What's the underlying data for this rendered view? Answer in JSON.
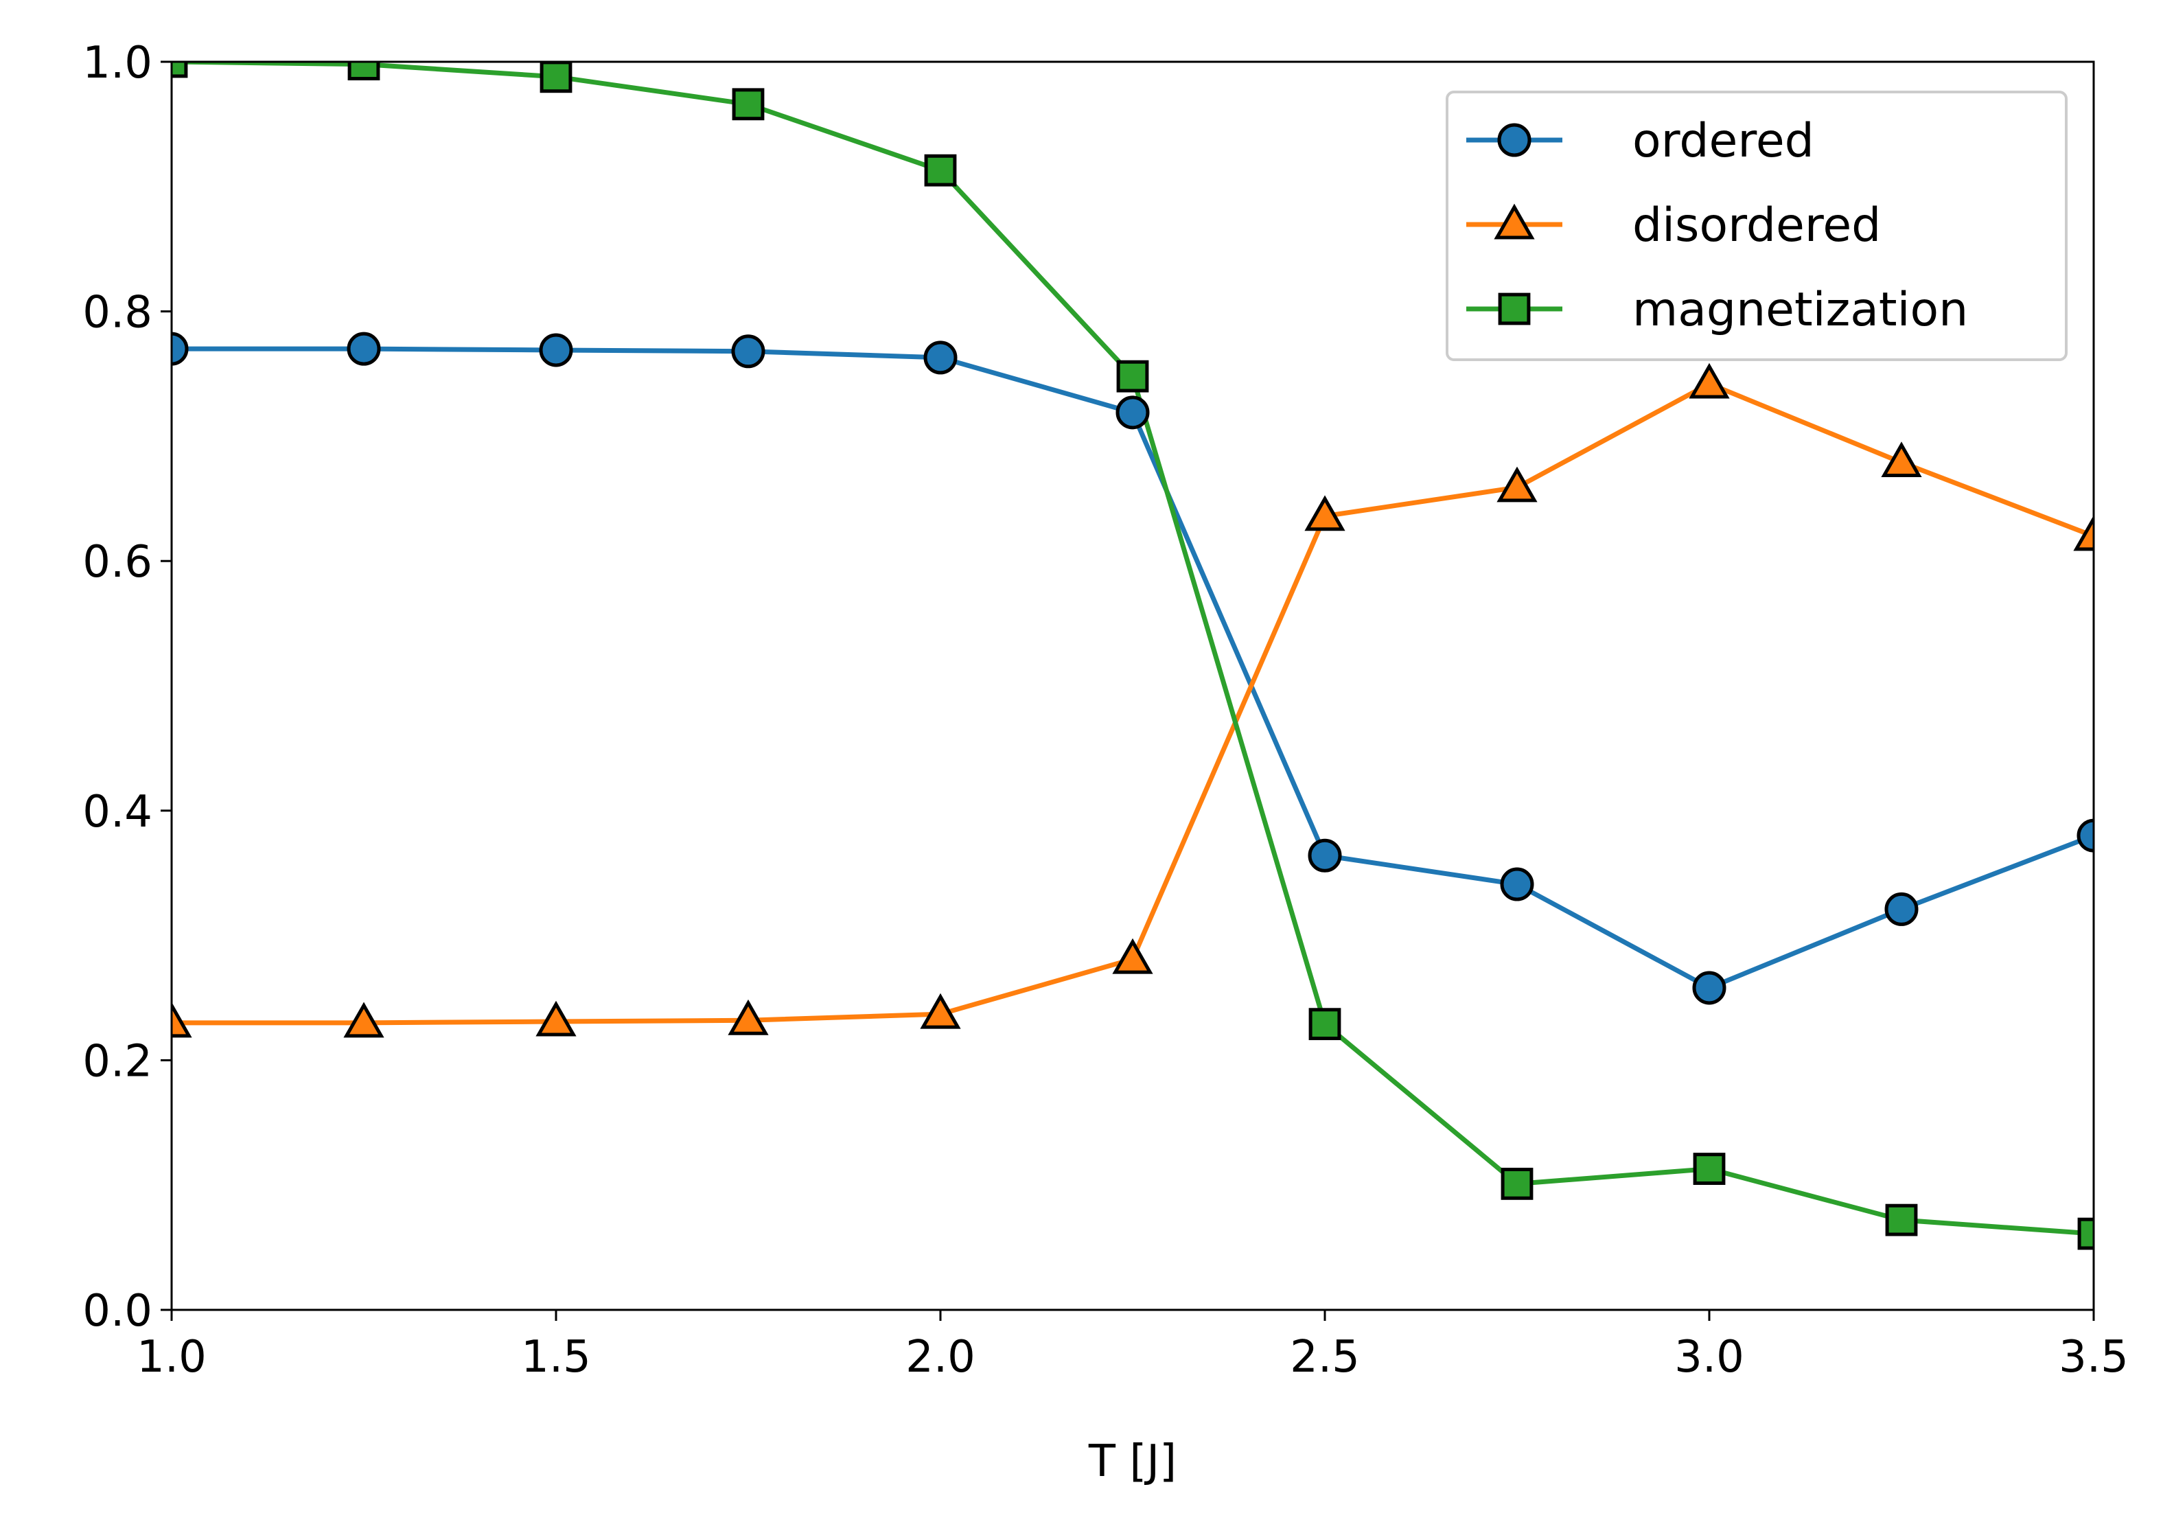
{
  "chart_data": {
    "type": "line",
    "title": "",
    "xlabel": "T [J]",
    "ylabel": "",
    "xlim": [
      1.0,
      3.5
    ],
    "ylim": [
      0.0,
      1.0
    ],
    "xticks": [
      "1.0",
      "1.5",
      "2.0",
      "2.5",
      "3.0",
      "3.5"
    ],
    "yticks": [
      "0.0",
      "0.2",
      "0.4",
      "0.6",
      "0.8",
      "1.0"
    ],
    "grid": false,
    "legend_position": "top-right",
    "x": [
      1.0,
      1.25,
      1.5,
      1.75,
      2.0,
      2.25,
      2.5,
      2.75,
      3.0,
      3.25,
      3.5
    ],
    "series": [
      {
        "name": "ordered",
        "marker": "circle",
        "color": "#1f77b4",
        "values": [
          0.77,
          0.77,
          0.769,
          0.768,
          0.763,
          0.719,
          0.364,
          0.341,
          0.258,
          0.321,
          0.38
        ]
      },
      {
        "name": "disordered",
        "marker": "triangle",
        "color": "#ff7f0e",
        "values": [
          0.23,
          0.23,
          0.231,
          0.232,
          0.237,
          0.281,
          0.636,
          0.659,
          0.742,
          0.679,
          0.62
        ]
      },
      {
        "name": "magnetization",
        "marker": "square",
        "color": "#2ca02c",
        "values": [
          1.0,
          0.998,
          0.988,
          0.966,
          0.913,
          0.748,
          0.229,
          0.101,
          0.113,
          0.072,
          0.061
        ]
      }
    ]
  }
}
